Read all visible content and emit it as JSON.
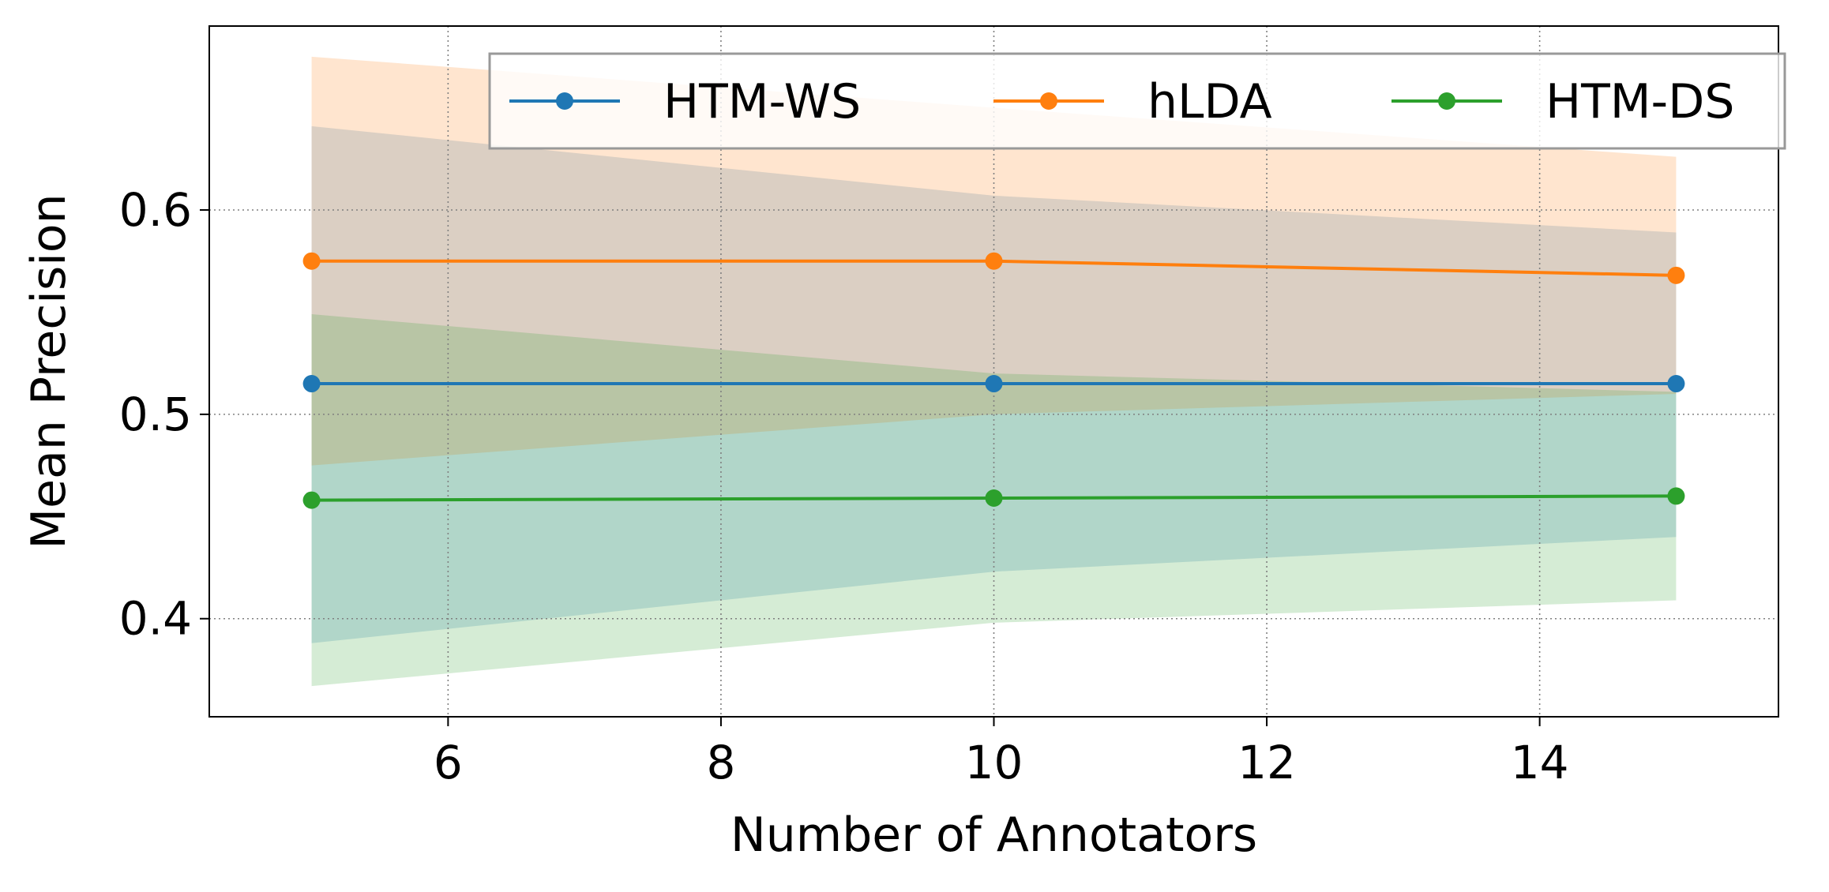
{
  "chart_data": {
    "type": "line",
    "title": "",
    "xlabel": "Number of Annotators",
    "ylabel": "Mean Precision",
    "x": [
      5,
      10,
      15
    ],
    "xlim": [
      4.25,
      15.75
    ],
    "ylim": [
      0.352,
      0.69
    ],
    "xticks": [
      6,
      8,
      10,
      12,
      14
    ],
    "yticks": [
      0.4,
      0.5,
      0.6
    ],
    "xtick_labels": [
      "6",
      "8",
      "10",
      "12",
      "14"
    ],
    "ytick_labels": [
      "0.4",
      "0.5",
      "0.6"
    ],
    "grid": true,
    "legend_position": "top-right",
    "series": [
      {
        "name": "HTM-WS",
        "color": "#1f77b4",
        "values": [
          0.515,
          0.515,
          0.515
        ],
        "band_lower": [
          0.388,
          0.423,
          0.44
        ],
        "band_upper": [
          0.641,
          0.607,
          0.589
        ]
      },
      {
        "name": "hLDA",
        "color": "#ff7f0e",
        "values": [
          0.575,
          0.575,
          0.568
        ],
        "band_lower": [
          0.475,
          0.5,
          0.51
        ],
        "band_upper": [
          0.675,
          0.65,
          0.626
        ]
      },
      {
        "name": "HTM-DS",
        "color": "#2ca02c",
        "values": [
          0.458,
          0.459,
          0.46
        ],
        "band_lower": [
          0.367,
          0.398,
          0.409
        ],
        "band_upper": [
          0.549,
          0.52,
          0.511
        ]
      }
    ]
  }
}
